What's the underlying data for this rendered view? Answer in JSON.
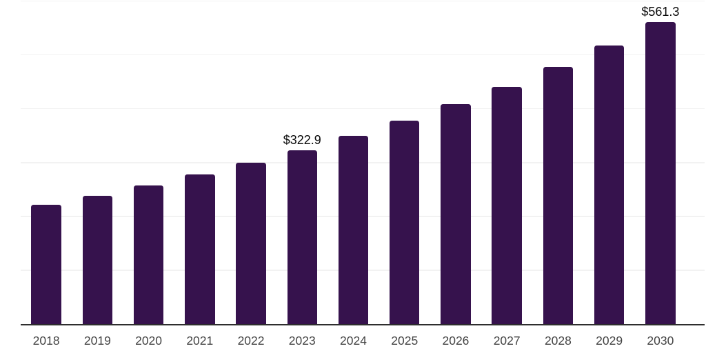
{
  "chart_data": {
    "type": "bar",
    "categories": [
      "2018",
      "2019",
      "2020",
      "2021",
      "2022",
      "2023",
      "2024",
      "2025",
      "2026",
      "2027",
      "2028",
      "2029",
      "2030"
    ],
    "values": [
      221.6,
      238.0,
      258.0,
      277.6,
      299.8,
      322.9,
      349.2,
      378.4,
      408.4,
      440.4,
      477.9,
      517.7,
      561.3
    ],
    "annotations": [
      {
        "category": "2023",
        "text": "$322.9"
      },
      {
        "category": "2030",
        "text": "$561.3"
      }
    ],
    "ylim": [
      0,
      600
    ],
    "grid_interval": 100,
    "grid": "horizontal",
    "legend": "none",
    "colors": {
      "bar": "#36124D",
      "gridline": "#F2F2F2",
      "axis": "#2E2E2E",
      "tick_label": "#454545",
      "value_label": "#0A0A0A",
      "background": "#FFFFFF"
    }
  }
}
